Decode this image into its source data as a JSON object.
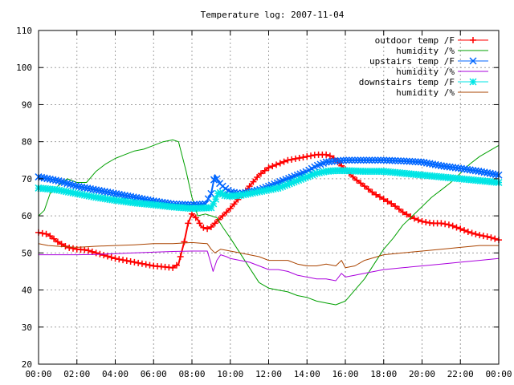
{
  "chart_data": {
    "type": "line",
    "title": "Temperature log: 2007-11-04",
    "xlabel": "",
    "ylabel": "",
    "xlim": [
      0,
      24
    ],
    "ylim": [
      20,
      110
    ],
    "grid": true,
    "legend_position": "top-right",
    "x_ticks": [
      {
        "v": 0,
        "label": "00:00"
      },
      {
        "v": 2,
        "label": "02:00"
      },
      {
        "v": 4,
        "label": "04:00"
      },
      {
        "v": 6,
        "label": "06:00"
      },
      {
        "v": 8,
        "label": "08:00"
      },
      {
        "v": 10,
        "label": "10:00"
      },
      {
        "v": 12,
        "label": "12:00"
      },
      {
        "v": 14,
        "label": "14:00"
      },
      {
        "v": 16,
        "label": "16:00"
      },
      {
        "v": 18,
        "label": "18:00"
      },
      {
        "v": 20,
        "label": "20:00"
      },
      {
        "v": 22,
        "label": "22:00"
      },
      {
        "v": 24,
        "label": "00:00"
      }
    ],
    "y_ticks": [
      {
        "v": 20,
        "label": "20"
      },
      {
        "v": 30,
        "label": "30"
      },
      {
        "v": 40,
        "label": "40"
      },
      {
        "v": 50,
        "label": "50"
      },
      {
        "v": 60,
        "label": "60"
      },
      {
        "v": 70,
        "label": "70"
      },
      {
        "v": 80,
        "label": "80"
      },
      {
        "v": 90,
        "label": "90"
      },
      {
        "v": 100,
        "label": "100"
      },
      {
        "v": 110,
        "label": "110"
      }
    ],
    "series": [
      {
        "name": "outdoor temp /F",
        "color": "#ff0000",
        "marker": "plus",
        "line_width": 2,
        "mark_every": 0.2,
        "x": [
          0,
          0.5,
          1,
          1.5,
          2,
          2.5,
          3,
          4,
          5,
          6,
          7,
          7.3,
          7.6,
          7.8,
          8,
          8.3,
          8.5,
          8.8,
          9,
          9.5,
          10,
          10.5,
          11,
          11.5,
          12,
          12.5,
          13,
          13.5,
          14,
          14.5,
          15,
          15.3,
          15.6,
          16,
          16.5,
          17,
          17.5,
          18,
          18.5,
          19,
          19.5,
          20,
          20.5,
          21,
          21.5,
          22,
          22.5,
          23,
          23.5,
          24
        ],
        "y": [
          55.5,
          55,
          53,
          51.5,
          51,
          50.8,
          50,
          48.5,
          47.5,
          46.5,
          46,
          47,
          53,
          58,
          60.5,
          59,
          57,
          56.5,
          57,
          59.5,
          62,
          65,
          68,
          71,
          73,
          74,
          75,
          75.5,
          76,
          76.5,
          76.5,
          76,
          74.5,
          72.5,
          70,
          68,
          66,
          64.5,
          63,
          61,
          59.5,
          58.5,
          58,
          58,
          57.5,
          56.5,
          55.5,
          54.8,
          54.3,
          53.5
        ]
      },
      {
        "name": "humidity /%",
        "color": "#00a000",
        "marker": "none",
        "line_width": 1,
        "x": [
          0,
          0.3,
          0.6,
          1,
          1.5,
          2,
          2.5,
          3,
          3.5,
          4,
          4.5,
          5,
          5.5,
          6,
          6.5,
          7,
          7.3,
          7.7,
          8,
          8.3,
          8.7,
          9,
          9.3,
          9.6,
          10,
          10.5,
          11,
          11.5,
          12,
          12.5,
          13,
          13.5,
          14,
          14.5,
          15,
          15.5,
          16,
          16.5,
          17,
          17.5,
          18,
          18.5,
          19,
          19.5,
          20,
          20.5,
          21,
          21.5,
          22,
          22.5,
          23,
          23.5,
          24
        ],
        "y": [
          60,
          61.5,
          66,
          68,
          70,
          69,
          69,
          72,
          74,
          75.5,
          76.5,
          77.5,
          78,
          79,
          80,
          80.5,
          80,
          72,
          65,
          60,
          60.5,
          60,
          59.5,
          57,
          54,
          50,
          46,
          42,
          40.5,
          40,
          39.5,
          38.5,
          38,
          37,
          36.5,
          36,
          37,
          40,
          43,
          47,
          51,
          54,
          57.5,
          60,
          62.5,
          65,
          67,
          69,
          71.5,
          74,
          76,
          77.5,
          79
        ]
      },
      {
        "name": "upstairs temp /F",
        "color": "#0066ff",
        "marker": "cross",
        "line_width": 2,
        "mark_every": 0.15,
        "x": [
          0,
          1,
          2,
          3,
          4,
          5,
          6,
          7,
          8,
          8.7,
          9,
          9.2,
          9.4,
          9.7,
          10,
          10.5,
          11,
          11.5,
          12,
          12.5,
          13,
          13.5,
          14,
          14.5,
          15,
          15.5,
          16,
          17,
          18,
          19,
          20,
          21,
          22,
          23,
          24
        ],
        "y": [
          70.5,
          69.5,
          68,
          67,
          66,
          65,
          64,
          63.2,
          63,
          63.2,
          66,
          71,
          69,
          67.5,
          66.5,
          66,
          66.5,
          67,
          68,
          69,
          70,
          71,
          72,
          73.5,
          74.5,
          74.8,
          75,
          75,
          75,
          74.8,
          74.5,
          73.5,
          72.8,
          72,
          71
        ]
      },
      {
        "name": "humidity /%",
        "color": "#aa00dd",
        "marker": "none",
        "line_width": 1,
        "x": [
          0,
          1,
          2,
          3,
          4,
          5,
          6,
          7,
          8,
          8.8,
          9,
          9.1,
          9.3,
          9.5,
          9.8,
          10,
          10.5,
          11,
          11.5,
          12,
          12.5,
          13,
          13.5,
          14,
          14.5,
          15,
          15.5,
          15.8,
          16,
          16.5,
          17,
          18,
          19,
          20,
          21,
          22,
          23,
          24
        ],
        "y": [
          49.5,
          49.5,
          49.5,
          49.6,
          49.8,
          50,
          50.2,
          50.4,
          50.5,
          50.5,
          47,
          45,
          48,
          49.5,
          49,
          48.5,
          48,
          47.5,
          46.5,
          45.5,
          45.5,
          45,
          44,
          43.5,
          43,
          43,
          42.5,
          44.5,
          43.5,
          44,
          44.5,
          45.5,
          46,
          46.5,
          47,
          47.5,
          48,
          48.5
        ]
      },
      {
        "name": "downstairs temp /F",
        "color": "#00e5e5",
        "marker": "star",
        "line_width": 2,
        "mark_every": 0.12,
        "x": [
          0,
          1,
          2,
          3,
          4,
          5,
          6,
          7,
          8,
          9,
          9.2,
          9.4,
          9.7,
          10,
          10.5,
          11,
          11.5,
          12,
          12.5,
          13,
          13.5,
          14,
          14.5,
          15,
          15.5,
          16,
          17,
          18,
          19,
          20,
          21,
          22,
          23,
          24
        ],
        "y": [
          67.5,
          67,
          66,
          65,
          64.2,
          63.5,
          63,
          62.4,
          62,
          62.2,
          64,
          66.5,
          65.5,
          65.3,
          65.5,
          66,
          66.5,
          67,
          67.5,
          68.5,
          69.5,
          70.5,
          71.5,
          72,
          72.2,
          72.2,
          72,
          72,
          71.5,
          71,
          70.5,
          70,
          69.5,
          69
        ]
      },
      {
        "name": "humidity /%",
        "color": "#aa4400",
        "marker": "none",
        "line_width": 1,
        "x": [
          0,
          0.5,
          1,
          2,
          3,
          4,
          5,
          6,
          7,
          8,
          8.8,
          9,
          9.2,
          9.5,
          10,
          10.5,
          11,
          11.5,
          12,
          12.5,
          13,
          13.5,
          14,
          14.5,
          15,
          15.5,
          15.8,
          16,
          16.5,
          17,
          18,
          19,
          20,
          21,
          22,
          23,
          24
        ],
        "y": [
          52.5,
          52,
          51.8,
          51.5,
          51.8,
          52,
          52.2,
          52.5,
          52.5,
          52.8,
          52.5,
          51,
          50,
          51,
          50.5,
          50,
          49.5,
          49,
          48,
          48,
          48,
          47,
          46.5,
          46.5,
          47,
          46.5,
          48,
          46,
          46.5,
          48,
          49.5,
          50,
          50.5,
          51,
          51.5,
          52,
          52
        ]
      }
    ]
  }
}
